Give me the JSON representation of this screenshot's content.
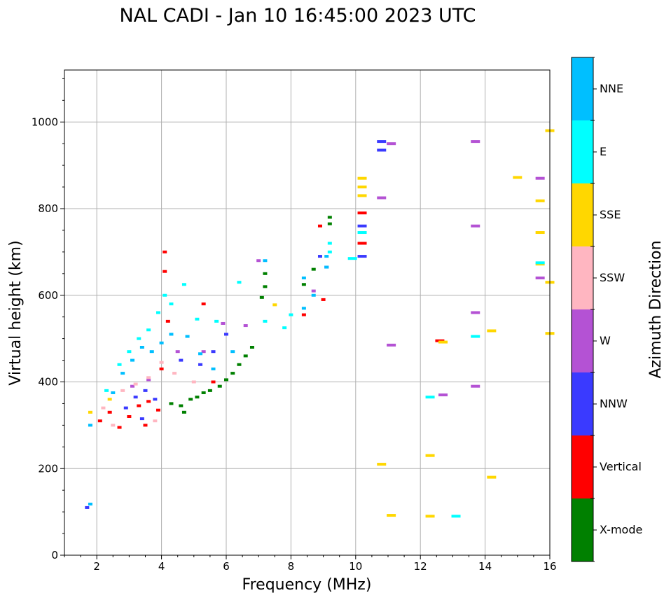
{
  "chart_data": {
    "type": "scatter",
    "title": "NAL CADI - Jan 10 16:45:00 2023 UTC",
    "xlabel": "Frequency (MHz)",
    "ylabel": "Virtual height (km)",
    "xlim": [
      1,
      16
    ],
    "ylim": [
      0,
      1120
    ],
    "xticks": [
      2,
      4,
      6,
      8,
      10,
      12,
      14,
      16
    ],
    "yticks": [
      0,
      200,
      400,
      600,
      800,
      1000
    ],
    "grid": true,
    "colorbar": {
      "label": "Azimuth Direction",
      "categories": [
        "X-mode",
        "Vertical",
        "NNW",
        "W",
        "SSW",
        "SSE",
        "E",
        "NNE"
      ],
      "colors": [
        "#008000",
        "#ff0000",
        "#3a3aff",
        "#b452d4",
        "#ffb6c1",
        "#ffd700",
        "#00ffff",
        "#00bfff"
      ]
    },
    "series": [
      {
        "name": "X-mode",
        "points": [
          [
            4.7,
            330
          ],
          [
            4.9,
            360
          ],
          [
            5.1,
            365
          ],
          [
            5.3,
            375
          ],
          [
            5.5,
            380
          ],
          [
            5.8,
            390
          ],
          [
            6.0,
            405
          ],
          [
            6.2,
            420
          ],
          [
            6.4,
            440
          ],
          [
            6.6,
            460
          ],
          [
            6.8,
            480
          ],
          [
            7.2,
            620
          ],
          [
            7.2,
            650
          ],
          [
            7.1,
            595
          ],
          [
            8.7,
            660
          ],
          [
            8.4,
            625
          ],
          [
            9.2,
            780
          ],
          [
            9.2,
            765
          ],
          [
            4.3,
            350
          ],
          [
            4.6,
            345
          ]
        ]
      },
      {
        "name": "Vertical",
        "points": [
          [
            2.1,
            310
          ],
          [
            2.4,
            330
          ],
          [
            2.7,
            295
          ],
          [
            3.0,
            320
          ],
          [
            3.3,
            345
          ],
          [
            3.6,
            355
          ],
          [
            3.9,
            335
          ],
          [
            4.1,
            700
          ],
          [
            4.1,
            655
          ],
          [
            4.2,
            540
          ],
          [
            4.0,
            430
          ],
          [
            5.3,
            580
          ],
          [
            5.6,
            400
          ],
          [
            8.4,
            555
          ],
          [
            8.9,
            760
          ],
          [
            9.0,
            590
          ],
          [
            10.2,
            720
          ],
          [
            10.2,
            790
          ],
          [
            12.6,
            495
          ],
          [
            3.5,
            300
          ]
        ]
      },
      {
        "name": "NNW",
        "points": [
          [
            2.9,
            340
          ],
          [
            3.2,
            365
          ],
          [
            3.5,
            380
          ],
          [
            3.8,
            360
          ],
          [
            4.6,
            450
          ],
          [
            5.2,
            440
          ],
          [
            5.6,
            470
          ],
          [
            6.0,
            510
          ],
          [
            8.9,
            690
          ],
          [
            9.1,
            665
          ],
          [
            10.2,
            760
          ],
          [
            10.2,
            690
          ],
          [
            10.8,
            955
          ],
          [
            10.8,
            935
          ],
          [
            1.7,
            110
          ],
          [
            3.4,
            315
          ]
        ]
      },
      {
        "name": "W",
        "points": [
          [
            3.1,
            390
          ],
          [
            3.6,
            405
          ],
          [
            4.5,
            470
          ],
          [
            5.3,
            470
          ],
          [
            5.9,
            535
          ],
          [
            6.6,
            530
          ],
          [
            7.0,
            680
          ],
          [
            8.7,
            610
          ],
          [
            10.8,
            825
          ],
          [
            11.1,
            950
          ],
          [
            11.1,
            485
          ],
          [
            12.7,
            370
          ],
          [
            13.7,
            955
          ],
          [
            13.7,
            760
          ],
          [
            13.7,
            560
          ],
          [
            13.7,
            390
          ],
          [
            15.7,
            870
          ],
          [
            15.7,
            640
          ]
        ]
      },
      {
        "name": "SSW",
        "points": [
          [
            2.2,
            340
          ],
          [
            2.5,
            300
          ],
          [
            2.8,
            380
          ],
          [
            3.2,
            395
          ],
          [
            3.6,
            410
          ],
          [
            4.0,
            445
          ],
          [
            4.4,
            420
          ],
          [
            5.0,
            400
          ],
          [
            3.8,
            310
          ]
        ]
      },
      {
        "name": "SSE",
        "points": [
          [
            1.8,
            330
          ],
          [
            2.4,
            360
          ],
          [
            10.2,
            870
          ],
          [
            10.2,
            850
          ],
          [
            10.2,
            830
          ],
          [
            10.8,
            210
          ],
          [
            11.1,
            92
          ],
          [
            12.3,
            230
          ],
          [
            12.3,
            90
          ],
          [
            14.2,
            518
          ],
          [
            14.2,
            180
          ],
          [
            15.0,
            872
          ],
          [
            15.7,
            818
          ],
          [
            15.7,
            745
          ],
          [
            15.7,
            672
          ],
          [
            16.0,
            980
          ],
          [
            16.0,
            630
          ],
          [
            16.0,
            512
          ],
          [
            7.5,
            578
          ],
          [
            12.7,
            492
          ]
        ]
      },
      {
        "name": "E",
        "points": [
          [
            2.3,
            380
          ],
          [
            2.7,
            440
          ],
          [
            3.0,
            470
          ],
          [
            3.3,
            500
          ],
          [
            3.6,
            520
          ],
          [
            3.9,
            560
          ],
          [
            4.1,
            600
          ],
          [
            4.3,
            580
          ],
          [
            4.7,
            625
          ],
          [
            5.1,
            545
          ],
          [
            5.7,
            540
          ],
          [
            6.4,
            630
          ],
          [
            7.2,
            540
          ],
          [
            7.8,
            525
          ],
          [
            8.0,
            555
          ],
          [
            9.2,
            720
          ],
          [
            9.2,
            700
          ],
          [
            10.2,
            745
          ],
          [
            12.3,
            365
          ],
          [
            13.1,
            90
          ],
          [
            13.7,
            505
          ],
          [
            15.7,
            675
          ],
          [
            9.9,
            685
          ]
        ]
      },
      {
        "name": "NNE",
        "points": [
          [
            1.8,
            300
          ],
          [
            2.5,
            375
          ],
          [
            2.8,
            420
          ],
          [
            3.1,
            450
          ],
          [
            3.4,
            480
          ],
          [
            3.7,
            470
          ],
          [
            4.0,
            490
          ],
          [
            4.3,
            510
          ],
          [
            4.8,
            505
          ],
          [
            5.2,
            465
          ],
          [
            5.6,
            430
          ],
          [
            6.2,
            470
          ],
          [
            7.2,
            680
          ],
          [
            8.4,
            570
          ],
          [
            8.4,
            640
          ],
          [
            8.7,
            600
          ],
          [
            9.1,
            690
          ],
          [
            9.1,
            665
          ],
          [
            1.8,
            118
          ]
        ]
      }
    ]
  }
}
